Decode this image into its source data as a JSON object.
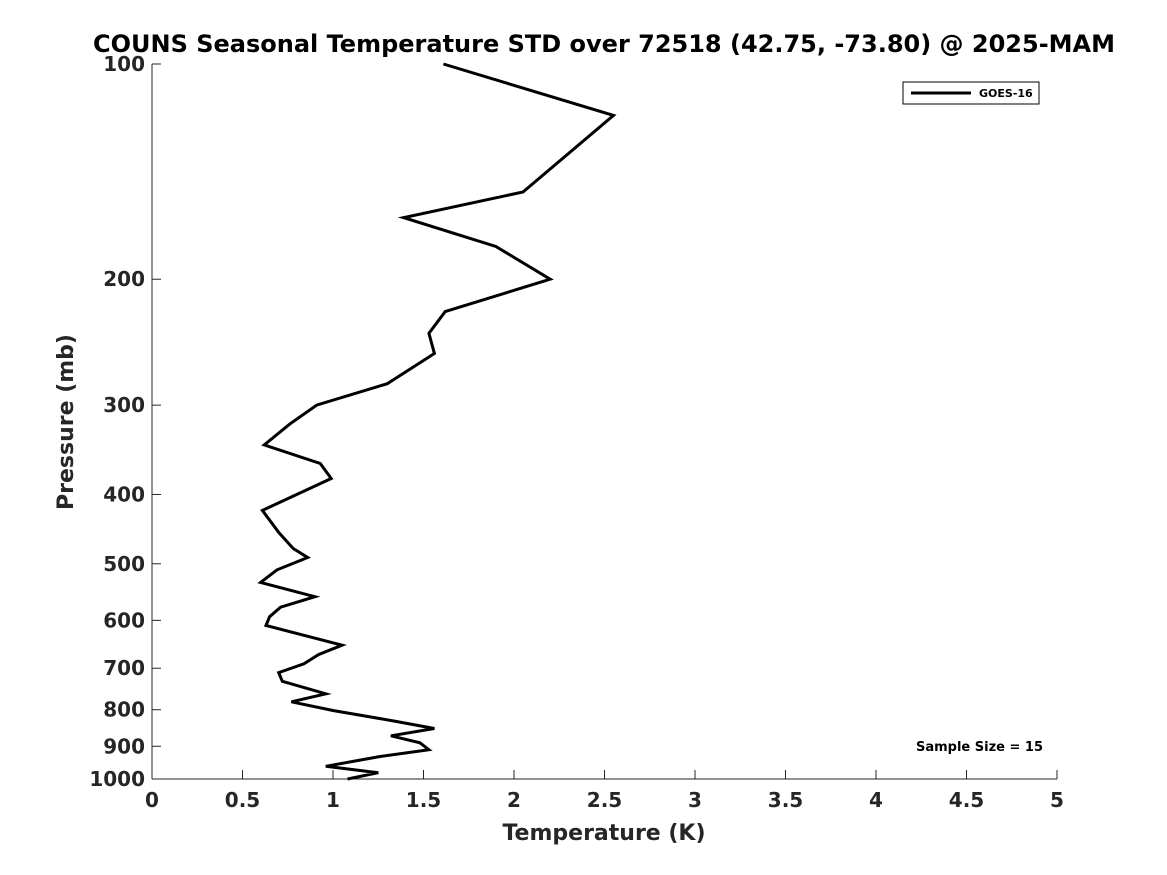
{
  "chart_data": {
    "type": "line",
    "title": "COUNS Seasonal Temperature STD over 72518 (42.75, -73.80) @ 2025-MAM",
    "xlabel": "Temperature (K)",
    "ylabel": "Pressure (mb)",
    "xlim": [
      0,
      5
    ],
    "ylim": [
      100,
      1000
    ],
    "y_scale": "log",
    "y_reversed": true,
    "xticks": [
      0,
      0.5,
      1,
      1.5,
      2,
      2.5,
      3,
      3.5,
      4,
      4.5,
      5
    ],
    "xtick_labels": [
      "0",
      "0.5",
      "1",
      "1.5",
      "2",
      "2.5",
      "3",
      "3.5",
      "4",
      "4.5",
      "5"
    ],
    "yticks": [
      100,
      200,
      300,
      400,
      500,
      600,
      700,
      800,
      900,
      1000
    ],
    "ytick_labels": [
      "100",
      "200",
      "300",
      "400",
      "500",
      "600",
      "700",
      "800",
      "900",
      "1000"
    ],
    "grid": false,
    "legend_position": "top-right",
    "annotation": "Sample Size = 15",
    "series": [
      {
        "name": "GOES-16",
        "color": "#000000",
        "points": [
          [
            1.61,
            100
          ],
          [
            2.55,
            118
          ],
          [
            2.05,
            151
          ],
          [
            1.39,
            164
          ],
          [
            1.9,
            180
          ],
          [
            2.2,
            200
          ],
          [
            1.62,
            222
          ],
          [
            1.53,
            238
          ],
          [
            1.56,
            254
          ],
          [
            1.3,
            280
          ],
          [
            0.91,
            300
          ],
          [
            0.76,
            319
          ],
          [
            0.62,
            341
          ],
          [
            0.93,
            362
          ],
          [
            0.99,
            380
          ],
          [
            0.61,
            421
          ],
          [
            0.7,
            452
          ],
          [
            0.78,
            476
          ],
          [
            0.86,
            490
          ],
          [
            0.69,
            510
          ],
          [
            0.6,
            531
          ],
          [
            0.9,
            556
          ],
          [
            0.71,
            575
          ],
          [
            0.65,
            593
          ],
          [
            0.63,
            610
          ],
          [
            1.05,
            650
          ],
          [
            0.92,
            670
          ],
          [
            0.84,
            690
          ],
          [
            0.7,
            710
          ],
          [
            0.72,
            730
          ],
          [
            0.96,
            760
          ],
          [
            0.77,
            780
          ],
          [
            1.0,
            802
          ],
          [
            1.34,
            830
          ],
          [
            1.56,
            850
          ],
          [
            1.32,
            870
          ],
          [
            1.48,
            890
          ],
          [
            1.53,
            910
          ],
          [
            1.26,
            930
          ],
          [
            0.96,
            960
          ],
          [
            1.25,
            980
          ],
          [
            1.08,
            1000
          ]
        ]
      }
    ]
  }
}
